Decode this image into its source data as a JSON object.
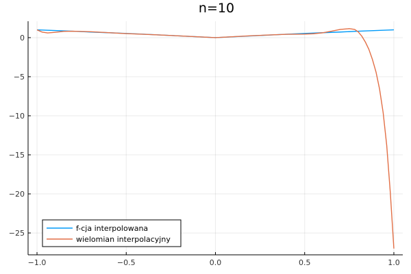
{
  "chart_data": {
    "type": "line",
    "title": "n=10",
    "xlabel": "",
    "ylabel": "",
    "xlim": [
      -1.05,
      1.05
    ],
    "ylim": [
      -27.8,
      2.1
    ],
    "xticks": [
      -1.0,
      -0.5,
      0.0,
      0.5,
      1.0
    ],
    "xtick_labels": [
      "−1.0",
      "−0.5",
      "0.0",
      "0.5",
      "1.0"
    ],
    "yticks": [
      0,
      -5,
      -10,
      -15,
      -20,
      -25
    ],
    "ytick_labels": [
      "0",
      "−5",
      "−10",
      "−15",
      "−20",
      "−25"
    ],
    "grid": true,
    "legend_position": "bottom-left",
    "series": [
      {
        "name": "f-cja interpolowana",
        "color": "#009af9",
        "x": [
          -1.0,
          -0.9,
          -0.8,
          -0.7,
          -0.6,
          -0.5,
          -0.4,
          -0.3,
          -0.2,
          -0.1,
          0.0,
          0.1,
          0.2,
          0.3,
          0.4,
          0.5,
          0.6,
          0.7,
          0.8,
          0.9,
          1.0
        ],
        "y": [
          1.0,
          0.91,
          0.82,
          0.72,
          0.63,
          0.54,
          0.44,
          0.33,
          0.22,
          0.11,
          0.0,
          0.11,
          0.22,
          0.33,
          0.44,
          0.54,
          0.63,
          0.72,
          0.82,
          0.91,
          1.0
        ]
      },
      {
        "name": "wielomian interpolacyjny",
        "color": "#e26f46",
        "x": [
          -1.0,
          -0.97,
          -0.94,
          -0.9,
          -0.85,
          -0.8,
          -0.7,
          -0.6,
          -0.5,
          -0.4,
          -0.3,
          -0.2,
          -0.1,
          0.0,
          0.1,
          0.2,
          0.3,
          0.4,
          0.5,
          0.55,
          0.6,
          0.65,
          0.7,
          0.75,
          0.78,
          0.8,
          0.82,
          0.84,
          0.86,
          0.88,
          0.9,
          0.92,
          0.94,
          0.96,
          0.98,
          1.0
        ],
        "y": [
          1.0,
          0.7,
          0.6,
          0.68,
          0.8,
          0.82,
          0.76,
          0.64,
          0.52,
          0.43,
          0.33,
          0.22,
          0.11,
          0.0,
          0.12,
          0.24,
          0.34,
          0.43,
          0.45,
          0.5,
          0.62,
          0.82,
          1.05,
          1.15,
          1.05,
          0.75,
          0.2,
          -0.55,
          -1.5,
          -2.8,
          -4.4,
          -6.6,
          -9.6,
          -13.8,
          -19.8,
          -27.0
        ]
      }
    ]
  }
}
